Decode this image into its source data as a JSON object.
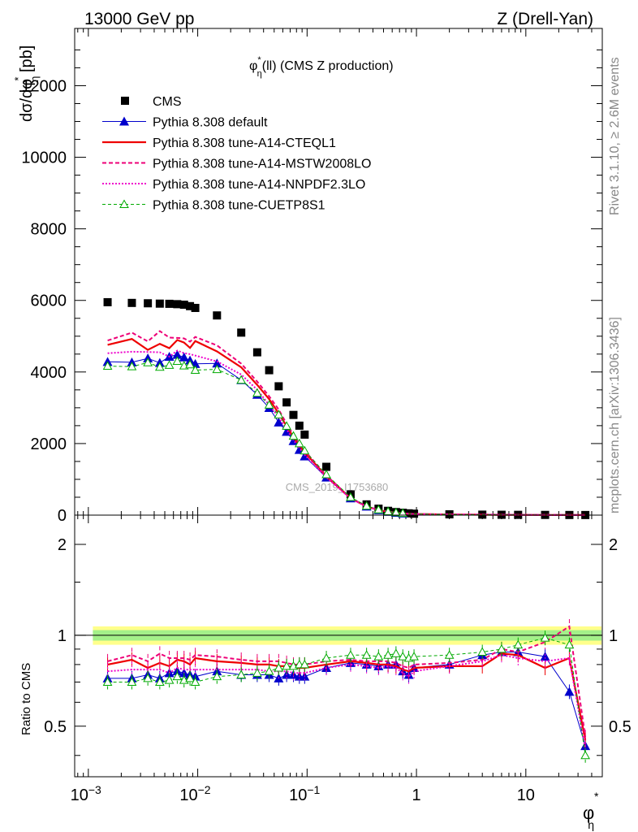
{
  "header": {
    "left": "13000 GeV pp",
    "right": "Z (Drell-Yan)"
  },
  "side_labels": {
    "rivet": "Rivet 3.1.10, ≥ 2.6M events",
    "mcplots": "mcplots.cern.ch [arXiv:1306.3436]"
  },
  "watermark": "CMS_2019_I1753680",
  "chart_data": {
    "type": "scatter",
    "title": "φ*η(ll) (CMS Z production)",
    "title_main": "φ",
    "title_sup": "*",
    "title_sub": "η",
    "title_rest": "(ll) (CMS Z production)",
    "xlabel_main": "φ",
    "xlabel_sup": "*",
    "xlabel_sub": "η",
    "ylabel_main": "dσ/dφ",
    "ylabel_sup": "*",
    "ylabel_sub": "η",
    "ylabel_unit": " [pb]",
    "ratio_ylabel": "Ratio to CMS",
    "x_scale": "log",
    "xlim": [
      0.00075,
      50
    ],
    "ylim": [
      0,
      13600
    ],
    "ratio_ylim": [
      0.34,
      2.5
    ],
    "x_ticks": [
      {
        "v": 0.001,
        "m": "10",
        "e": "−3"
      },
      {
        "v": 0.01,
        "m": "10",
        "e": "−2"
      },
      {
        "v": 0.1,
        "m": "10",
        "e": "−1"
      },
      {
        "v": 1,
        "m": "1",
        "e": ""
      },
      {
        "v": 10,
        "m": "10",
        "e": ""
      }
    ],
    "y_ticks": [
      0,
      2000,
      4000,
      6000,
      8000,
      10000,
      12000
    ],
    "y_tick_labels": [
      "0",
      "2000",
      "4000",
      "6000",
      "8000",
      "10000",
      "12000"
    ],
    "ratio_ticks": [
      0.5,
      1,
      2
    ],
    "ratio_tick_labels": [
      "0.5",
      "1",
      "2"
    ],
    "legend_position": "top-left",
    "x": [
      0.0015,
      0.0025,
      0.0035,
      0.0045,
      0.0055,
      0.0065,
      0.0075,
      0.0085,
      0.0095,
      0.015,
      0.025,
      0.035,
      0.045,
      0.055,
      0.065,
      0.075,
      0.085,
      0.095,
      0.15,
      0.25,
      0.35,
      0.45,
      0.55,
      0.65,
      0.75,
      0.85,
      0.95,
      2,
      4,
      6,
      8.5,
      15,
      25,
      35
    ],
    "data": {
      "name": "CMS",
      "y": [
        5950,
        5930,
        5920,
        5910,
        5905,
        5895,
        5880,
        5840,
        5790,
        5580,
        5100,
        4550,
        4050,
        3600,
        3150,
        2800,
        2500,
        2250,
        1350,
        580,
        300,
        180,
        120,
        85,
        65,
        50,
        40,
        22,
        13,
        10,
        8,
        6,
        4,
        3
      ],
      "ratio_band_stat": 0.04,
      "ratio_band_total": 0.07
    },
    "series": [
      {
        "name": "Pythia 8.308 default",
        "color": "#0000cc",
        "ratio": [
          0.72,
          0.72,
          0.74,
          0.72,
          0.75,
          0.76,
          0.75,
          0.74,
          0.73,
          0.76,
          0.74,
          0.74,
          0.74,
          0.72,
          0.74,
          0.74,
          0.73,
          0.73,
          0.78,
          0.81,
          0.8,
          0.79,
          0.8,
          0.8,
          0.76,
          0.74,
          0.78,
          0.8,
          0.86,
          0.88,
          0.88,
          0.85,
          0.65,
          0.43
        ]
      },
      {
        "name": "Pythia 8.308 tune-A14-CTEQL1",
        "color": "#ee0000",
        "ratio": [
          0.8,
          0.83,
          0.78,
          0.81,
          0.79,
          0.83,
          0.82,
          0.8,
          0.84,
          0.82,
          0.81,
          0.8,
          0.8,
          0.79,
          0.79,
          0.78,
          0.78,
          0.78,
          0.8,
          0.82,
          0.81,
          0.8,
          0.8,
          0.79,
          0.77,
          0.76,
          0.78,
          0.79,
          0.79,
          0.87,
          0.86,
          0.78,
          0.84,
          0.45
        ]
      },
      {
        "name": "Pythia 8.308 tune-A14-MSTW2008LO",
        "color": "#ee0077",
        "ratio": [
          0.82,
          0.86,
          0.82,
          0.87,
          0.84,
          0.84,
          0.84,
          0.83,
          0.86,
          0.85,
          0.83,
          0.82,
          0.82,
          0.82,
          0.81,
          0.8,
          0.8,
          0.8,
          0.82,
          0.83,
          0.82,
          0.82,
          0.82,
          0.81,
          0.79,
          0.78,
          0.8,
          0.81,
          0.83,
          0.9,
          0.88,
          0.95,
          1.07,
          0.46
        ]
      },
      {
        "name": "Pythia 8.308 tune-A14-NNPDF2.3LO",
        "color": "#ee00cc",
        "ratio": [
          0.76,
          0.77,
          0.77,
          0.77,
          0.75,
          0.78,
          0.77,
          0.77,
          0.77,
          0.77,
          0.77,
          0.77,
          0.76,
          0.76,
          0.76,
          0.75,
          0.75,
          0.75,
          0.78,
          0.8,
          0.79,
          0.78,
          0.79,
          0.78,
          0.75,
          0.73,
          0.76,
          0.79,
          0.82,
          0.86,
          0.84,
          0.82,
          0.84,
          0.42
        ]
      },
      {
        "name": "Pythia 8.308 tune-CUETP8S1",
        "color": "#00aa00",
        "ratio": [
          0.7,
          0.7,
          0.72,
          0.7,
          0.71,
          0.73,
          0.71,
          0.72,
          0.7,
          0.73,
          0.74,
          0.75,
          0.76,
          0.78,
          0.79,
          0.79,
          0.8,
          0.8,
          0.84,
          0.86,
          0.86,
          0.85,
          0.86,
          0.87,
          0.85,
          0.84,
          0.85,
          0.86,
          0.88,
          0.9,
          0.93,
          0.98,
          0.93,
          0.4
        ]
      }
    ],
    "legend": [
      {
        "label": "CMS",
        "style": "data"
      },
      {
        "label": "Pythia 8.308 default",
        "style": "s0"
      },
      {
        "label": "Pythia 8.308 tune-A14-CTEQL1",
        "style": "s1"
      },
      {
        "label": "Pythia 8.308 tune-A14-MSTW2008LO",
        "style": "s2"
      },
      {
        "label": "Pythia 8.308 tune-A14-NNPDF2.3LO",
        "style": "s3"
      },
      {
        "label": "Pythia 8.308 tune-CUETP8S1",
        "style": "s4"
      }
    ]
  }
}
